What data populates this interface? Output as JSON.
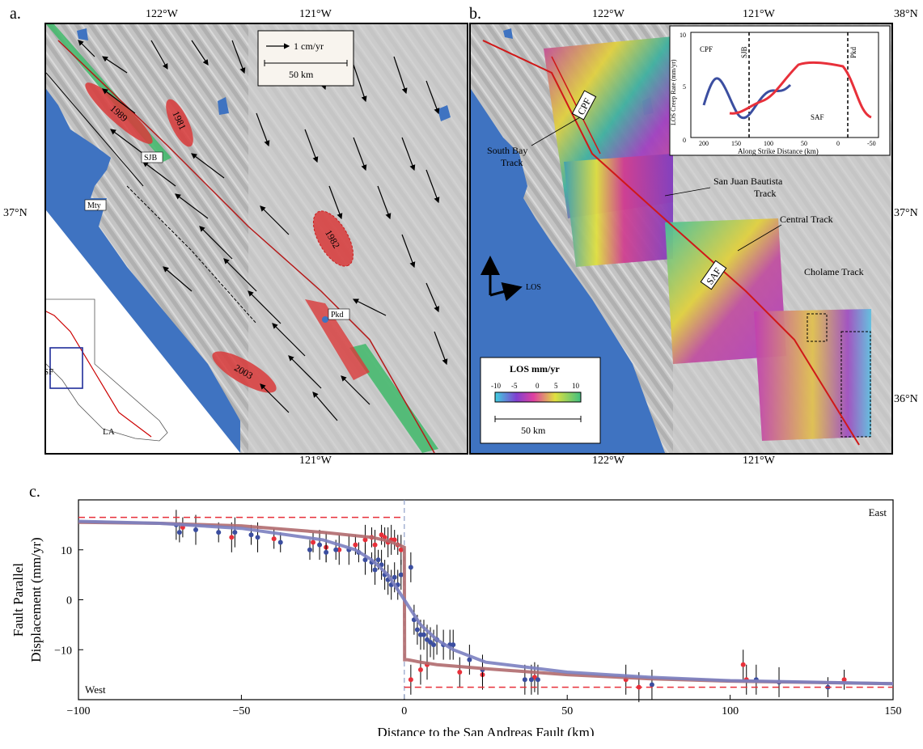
{
  "panel_a": {
    "label": "a.",
    "top_lon": [
      "122°W",
      "121°W"
    ],
    "bottom_lon": "121°W",
    "left_lat": "37°N",
    "scale_arrow": "1 cm/yr",
    "scale_bar": "50 km",
    "earthquakes": [
      "1989",
      "1981",
      "1982",
      "2003"
    ],
    "places": [
      "SJB",
      "Mty",
      "Pkd"
    ],
    "inset_labels": [
      "SF",
      "LA"
    ]
  },
  "panel_b": {
    "label": "b.",
    "top_lon": [
      "122°W",
      "121°W"
    ],
    "bottom_lon": [
      "122°W",
      "121°W"
    ],
    "right_lat": [
      "38°N",
      "37°N",
      "36°N"
    ],
    "tracks": [
      "South Bay\nTrack",
      "San Juan Bautista\nTrack",
      "Central Track",
      "Cholame Track"
    ],
    "faults": [
      "CPF",
      "SAF"
    ],
    "los_label": "LOS",
    "colorbar_title": "LOS mm/yr",
    "colorbar_ticks": [
      "-10",
      "-5",
      "0",
      "5",
      "10"
    ],
    "scale_bar": "50 km",
    "inset": {
      "ylabel": "LOS Creep Rate (mm/yr)",
      "xlabel": "Along Strike Distance (km)",
      "yticks": [
        "0",
        "5",
        "10"
      ],
      "xticks": [
        "200",
        "150",
        "100",
        "50",
        "0",
        "-50"
      ],
      "annotations": [
        "CPF",
        "SJB",
        "Pkd",
        "SAF"
      ]
    }
  },
  "panel_c": {
    "label": "c.",
    "west": "West",
    "east": "East",
    "colors": {
      "red": "#e8303a",
      "blue": "#3b4ea0",
      "red_model": "#b06a6e",
      "blue_model": "#7b7fc0"
    }
  },
  "chart_data": {
    "type": "scatter",
    "xlabel": "Distance to the San Andreas Fault (km)",
    "ylabel": "Fault Parallel\nDisplacement (mm/yr)",
    "xlim": [
      -100,
      150
    ],
    "ylim": [
      -20,
      20
    ],
    "xticks": [
      -100,
      -50,
      0,
      50,
      100,
      150
    ],
    "yticks": [
      -10,
      0,
      10
    ],
    "series": [
      {
        "color": "red",
        "x": [
          -68,
          -53,
          -40,
          -28,
          -24,
          -20,
          -15,
          -12,
          -10,
          -9,
          -7,
          -6,
          -5,
          -4,
          -3,
          -2,
          -1,
          2,
          5,
          7,
          17,
          24,
          40,
          68,
          72,
          104,
          105,
          135
        ],
        "y": [
          14.5,
          12.5,
          12.2,
          11.5,
          10.5,
          10,
          11,
          12,
          12.5,
          11,
          13,
          12.5,
          11.5,
          12,
          12,
          11,
          10,
          -16,
          -14,
          -13,
          -14.5,
          -15,
          -15.5,
          -16,
          -17.5,
          -13,
          -16,
          -16
        ],
        "err": [
          2,
          3,
          2,
          2,
          3,
          3,
          2,
          3,
          2,
          3,
          2,
          2,
          3,
          3,
          2,
          2,
          3,
          3,
          3,
          3,
          3,
          3,
          3,
          3,
          3,
          3,
          3,
          2
        ]
      },
      {
        "color": "blue",
        "x": [
          -70,
          -69,
          -64,
          -57,
          -52,
          -47,
          -45,
          -38,
          -29,
          -26,
          -24,
          -21,
          -17,
          -14,
          -12,
          -10,
          -9,
          -8,
          -7,
          -6,
          -5,
          -4,
          -3,
          -2,
          -1,
          2,
          3,
          4,
          5,
          6,
          7,
          8,
          9,
          10,
          12,
          14,
          15,
          20,
          24,
          37,
          39,
          41,
          76,
          108,
          115,
          130
        ],
        "y": [
          15,
          13.5,
          14,
          13.5,
          13.5,
          13,
          12.5,
          11.5,
          10,
          11,
          9.5,
          10,
          10,
          9.5,
          8,
          7.5,
          6,
          8,
          7,
          5,
          4,
          3,
          4.5,
          3,
          5,
          6.5,
          -4,
          -6,
          -7,
          -7,
          -8,
          -8.5,
          -9,
          -8,
          -9,
          -9,
          -9,
          -12,
          -14,
          -16,
          -16,
          -16,
          -17,
          -16,
          -16.5,
          -17.5
        ],
        "err": [
          3,
          2,
          3,
          2,
          3,
          2,
          3,
          2,
          2,
          3,
          2,
          2,
          3,
          2,
          3,
          2,
          3,
          2,
          3,
          3,
          3,
          3,
          3,
          3,
          3,
          3,
          3,
          3,
          3,
          3,
          3,
          3,
          3,
          3,
          3,
          3,
          3,
          3,
          3,
          3,
          3,
          3,
          3,
          3,
          3,
          2
        ]
      },
      {
        "color": "red_model",
        "type": "line",
        "x": [
          -100,
          -75,
          -50,
          -25,
          -10,
          -5,
          -1,
          0,
          0.1,
          1,
          5,
          10,
          25,
          50,
          75,
          100,
          150
        ],
        "y": [
          15.5,
          15.3,
          14.8,
          13.5,
          12.5,
          11.8,
          10.8,
          10.5,
          -12,
          -12,
          -12.5,
          -13,
          -13.8,
          -15,
          -15.8,
          -16.3,
          -16.8
        ]
      },
      {
        "color": "blue_model",
        "type": "line",
        "x": [
          -100,
          -75,
          -50,
          -25,
          -15,
          -10,
          -5,
          -2,
          0,
          2,
          5,
          10,
          15,
          25,
          50,
          75,
          100,
          150
        ],
        "y": [
          15.7,
          15.3,
          14.3,
          12,
          10,
          8,
          5,
          2,
          0,
          -2,
          -5,
          -8,
          -10,
          -12.5,
          -14.5,
          -15.5,
          -16.2,
          -16.8
        ]
      },
      {
        "color": "red",
        "type": "dashed",
        "name": "",
        "x": [
          -100,
          0
        ],
        "y": [
          16.5,
          16.5
        ]
      },
      {
        "color": "red",
        "type": "dashed",
        "x": [
          0,
          150
        ],
        "y": [
          -17.5,
          -17.5
        ]
      }
    ]
  }
}
